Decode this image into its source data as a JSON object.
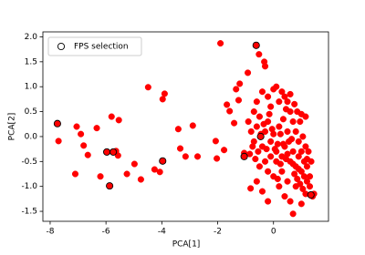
{
  "chart_data": {
    "type": "scatter",
    "xlabel": "PCA[1]",
    "ylabel": "PCA[2]",
    "xlim": [
      -8.26,
      1.97
    ],
    "ylim": [
      -1.7,
      2.1
    ],
    "xticks": [
      -8,
      -6,
      -4,
      -2,
      0
    ],
    "yticks": [
      {
        "value": 2,
        "label": "2.0"
      },
      1.5,
      {
        "value": 1,
        "label": "1.0"
      },
      0.5,
      {
        "value": 0,
        "label": "0.0"
      },
      -0.5,
      {
        "value": -1,
        "label": "-1.0"
      },
      -1.5
    ],
    "grid": false,
    "legend": "upper left",
    "series": [
      {
        "color": "#ff0000",
        "marker": "filled",
        "x": [
          -7.74,
          -7.7,
          -7.05,
          -6.9,
          -6.8,
          -7.1,
          -6.65,
          -6.33,
          -6.2,
          -5.97,
          -5.8,
          -5.74,
          -5.64,
          -5.54,
          -5.57,
          -5.87,
          -5.25,
          -4.98,
          -4.75,
          -4.49,
          -4.26,
          -4.07,
          -3.97,
          -3.97,
          -3.9,
          -3.41,
          -3.34,
          -3.15,
          -2.89,
          -2.72,
          -2.07,
          -2.03,
          -1.9,
          -1.77,
          -1.67,
          -1.57,
          -1.41,
          -1.34,
          -1.21,
          -1.25,
          -1.05,
          -1.05,
          -0.92,
          -0.82,
          -0.62,
          -0.52,
          -0.33,
          -0.3,
          -0.9,
          -0.8,
          -0.7,
          -0.6,
          -0.5,
          -0.4,
          -0.3,
          -0.2,
          -0.1,
          0,
          0.1,
          0.2,
          0.3,
          0.4,
          0.5,
          0.6,
          0.7,
          0.8,
          0.9,
          1.0,
          1.1,
          1.2,
          1.3,
          1.4,
          1.2,
          1.1,
          1.0,
          0.9,
          0.8,
          0.7,
          0.6,
          0.5,
          0.4,
          0.3,
          0.1,
          0,
          0.2,
          -0.1,
          -0.2,
          -0.4,
          -0.6,
          -0.7,
          -0.3,
          -0.2,
          0,
          0.2,
          0.4,
          0.6,
          0.8,
          0.5,
          0.3,
          0.1,
          -0.1,
          -0.5,
          -0.6,
          -0.4,
          -0.2,
          0.7,
          1.0,
          1.3,
          1.45,
          1.35,
          1.25,
          1.15,
          1.05,
          0.95,
          0.85,
          1.0,
          1.15,
          0.75,
          0.6,
          0.45,
          0.35,
          0.25,
          0.15,
          0.05,
          -0.05,
          -0.15,
          -0.25,
          -0.35,
          -0.45,
          -0.55,
          -0.65,
          -0.75,
          -0.85,
          0.55,
          0.65,
          0.75,
          0.85,
          0.95,
          1.05,
          1.15,
          0.45,
          0.35,
          0.25,
          0.15,
          0.9,
          1.2,
          0.7,
          0.5,
          -0.46,
          1.34
        ],
        "y": [
          0.26,
          -0.09,
          0.2,
          0.05,
          -0.18,
          -0.75,
          -0.37,
          0.17,
          -0.8,
          -0.31,
          0.4,
          -0.31,
          -0.29,
          0.33,
          -0.38,
          -0.99,
          -0.75,
          -0.55,
          -0.86,
          0.99,
          -0.66,
          -0.71,
          -0.49,
          0.75,
          0.86,
          0.15,
          -0.24,
          -0.4,
          0.22,
          -0.4,
          -0.09,
          -0.44,
          1.87,
          -0.27,
          0.64,
          0.51,
          0.27,
          0.95,
          1.06,
          0.73,
          -0.4,
          -0.33,
          1.28,
          -1.04,
          1.83,
          1.65,
          1.5,
          1.41,
          0.3,
          0.1,
          -0.1,
          0.2,
          0.4,
          -0.2,
          0.1,
          0.3,
          -0.1,
          0.05,
          -0.3,
          0.2,
          -0.4,
          -0.2,
          0.1,
          -0.5,
          -0.3,
          -0.6,
          -0.4,
          -0.7,
          -0.5,
          -0.9,
          -1.0,
          -1.2,
          -0.6,
          -0.8,
          -0.3,
          -0.1,
          0.1,
          0.3,
          0.5,
          0.7,
          0.8,
          0.9,
          1.0,
          0.95,
          0.7,
          0.6,
          0.8,
          0.9,
          0.7,
          0.5,
          -0.5,
          -0.7,
          -0.8,
          -1.0,
          -1.2,
          -1.3,
          -1.0,
          -0.9,
          -0.7,
          -0.5,
          -0.4,
          -0.6,
          -0.9,
          -1.1,
          -1.3,
          -1.55,
          -1.35,
          -0.8,
          -1.15,
          -0.5,
          -0.3,
          -0.2,
          0,
          0.3,
          0.5,
          0.45,
          0.4,
          0.65,
          0.85,
          0.55,
          0.35,
          0.05,
          -0.15,
          -0.25,
          0.15,
          0.45,
          -0.25,
          0.25,
          0.05,
          -0.3,
          -0.45,
          -0.2,
          -0.35,
          -0.1,
          -0.05,
          -0.75,
          -0.85,
          -0.95,
          -1.05,
          -1.15,
          -0.45,
          -0.15,
          -0.55,
          -0.85,
          -0.65,
          -0.45,
          -0.55,
          -0.35,
          0,
          -1.17
        ]
      },
      {
        "name": "FPS selection",
        "color": "#000000",
        "marker": "open",
        "x": [
          -7.74,
          -5.97,
          -5.74,
          -5.87,
          -3.97,
          -1.05,
          -0.62,
          -0.46,
          1.34
        ],
        "y": [
          0.26,
          -0.31,
          -0.31,
          -0.99,
          -0.49,
          -0.4,
          1.83,
          0,
          -1.17
        ]
      }
    ]
  }
}
